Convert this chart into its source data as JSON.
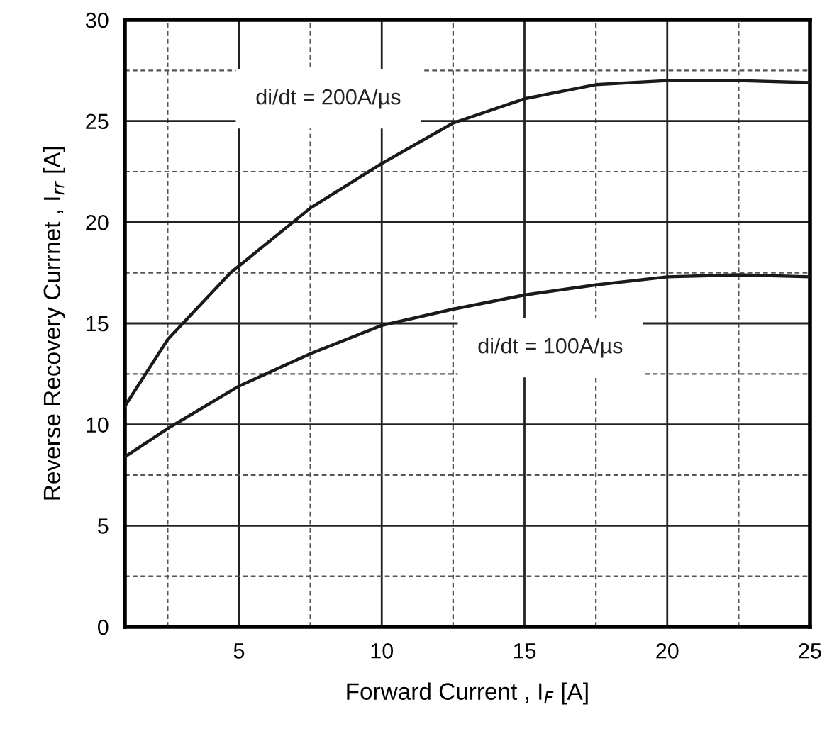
{
  "chart_data": {
    "type": "line",
    "xlabel": "Forward Current , I$_{F}$ [A]",
    "ylabel": "Reverse Recovery Currnet , I$_{rr}$ [A]",
    "x": [
      1,
      2.5,
      4.7,
      7.5,
      10,
      12.5,
      15,
      17.5,
      20,
      22.5,
      25
    ],
    "series": [
      {
        "name": "di/dt = 200A/µs",
        "color": "#1a1a1a",
        "values": [
          10.9,
          14.2,
          17.5,
          20.7,
          22.9,
          24.9,
          26.1,
          26.8,
          27.0,
          27.0,
          26.9
        ]
      },
      {
        "name": "di/dt = 100A/µs",
        "color": "#1a1a1a",
        "x": [
          1,
          2.5,
          5,
          7.5,
          10,
          12.5,
          15,
          17.5,
          20,
          22.5,
          25
        ],
        "values": [
          8.4,
          9.8,
          11.9,
          13.5,
          14.9,
          15.7,
          16.4,
          16.9,
          17.3,
          17.4,
          17.3
        ]
      }
    ],
    "xlim": [
      1,
      25
    ],
    "ylim": [
      0,
      30
    ],
    "xticks": [
      {
        "value": 2.5,
        "label": null
      },
      5,
      {
        "value": 7.5,
        "label": null
      },
      10,
      {
        "value": 12.5,
        "label": null
      },
      15,
      {
        "value": 17.5,
        "label": null
      },
      20,
      {
        "value": 22.5,
        "label": null
      },
      25
    ],
    "yticks": [
      0,
      {
        "value": 2.5,
        "label": null
      },
      5,
      {
        "value": 7.5,
        "label": null
      },
      10,
      {
        "value": 12.5,
        "label": null
      },
      15,
      {
        "value": 17.5,
        "label": null
      },
      20,
      {
        "value": 22.5,
        "label": null
      },
      25,
      {
        "value": 27.5,
        "label": null
      },
      30
    ],
    "grid": true,
    "legend": false,
    "marker": "none",
    "line_style": "solid"
  }
}
